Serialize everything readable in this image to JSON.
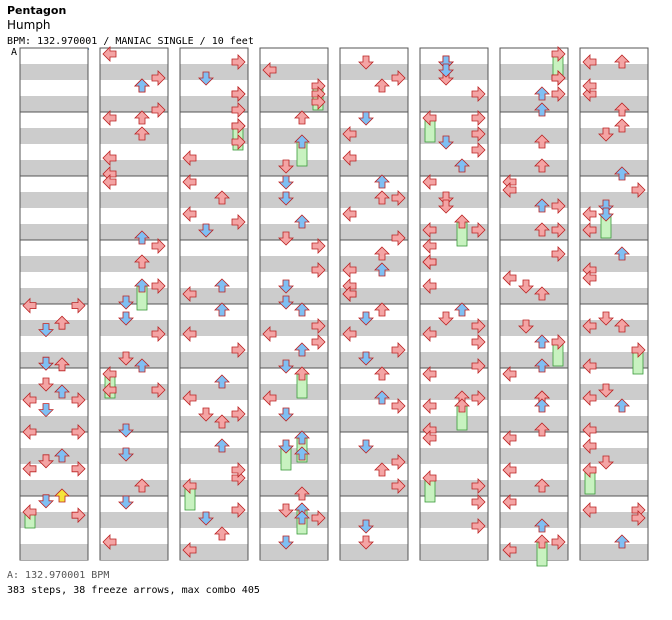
{
  "header": {
    "title": "Pentagon",
    "song": "Humph",
    "info": "BPM: 132.970001 / MANIAC SINGLE / 10 feet",
    "bpm_marker": "A"
  },
  "footer": {
    "bpm_legend": "A: 132.970001 BPM",
    "stats": "383 steps, 38 freeze arrows, max combo 405"
  },
  "colors": {
    "red_arrow": "#f4a4a4",
    "blue_arrow": "#7fbff3",
    "pink_arrow": "#f4b8f4",
    "yellow_arrow": "#f5e43a",
    "freeze": "#c8f2c0",
    "stripe": "#cccccc",
    "bpm_line": "#6fa8dc"
  },
  "chart_data": {
    "type": "step-chart",
    "mode": "MANIAC SINGLE",
    "bpm": 132.970001,
    "steps": 383,
    "freeze_arrows": 38,
    "max_combo": 405,
    "columns": [
      {
        "index": 0,
        "measures": [
          0,
          1,
          2,
          3,
          4,
          5,
          6,
          7,
          8
        ],
        "arrows": [
          {
            "beat": 16.1,
            "lane": 0
          },
          {
            "beat": 16.1,
            "lane": 3
          },
          {
            "beat": 17.6,
            "lane": 1
          },
          {
            "beat": 17.2,
            "lane": 2
          },
          {
            "beat": 19.7,
            "lane": 1
          },
          {
            "beat": 19.8,
            "lane": 2
          },
          {
            "beat": 21.0,
            "lane": 1
          },
          {
            "beat": 21.5,
            "lane": 2
          },
          {
            "beat": 22.6,
            "lane": 1
          },
          {
            "beat": 22.0,
            "lane": 0
          },
          {
            "beat": 22.0,
            "lane": 3
          },
          {
            "beat": 24.0,
            "lane": 0
          },
          {
            "beat": 24.0,
            "lane": 3
          },
          {
            "beat": 25.5,
            "lane": 2
          },
          {
            "beat": 25.8,
            "lane": 1
          },
          {
            "beat": 26.3,
            "lane": 0
          },
          {
            "beat": 26.3,
            "lane": 3
          },
          {
            "beat": 28.0,
            "lane": 2,
            "color": "yellow"
          },
          {
            "beat": 28.3,
            "lane": 1
          },
          {
            "beat": 29.0,
            "lane": 0,
            "freeze": 1.0
          },
          {
            "beat": 29.2,
            "lane": 3
          }
        ]
      },
      {
        "index": 1,
        "measures": [
          0,
          1,
          2,
          3,
          4,
          5,
          6,
          7,
          8
        ],
        "arrows": []
      }
    ]
  }
}
